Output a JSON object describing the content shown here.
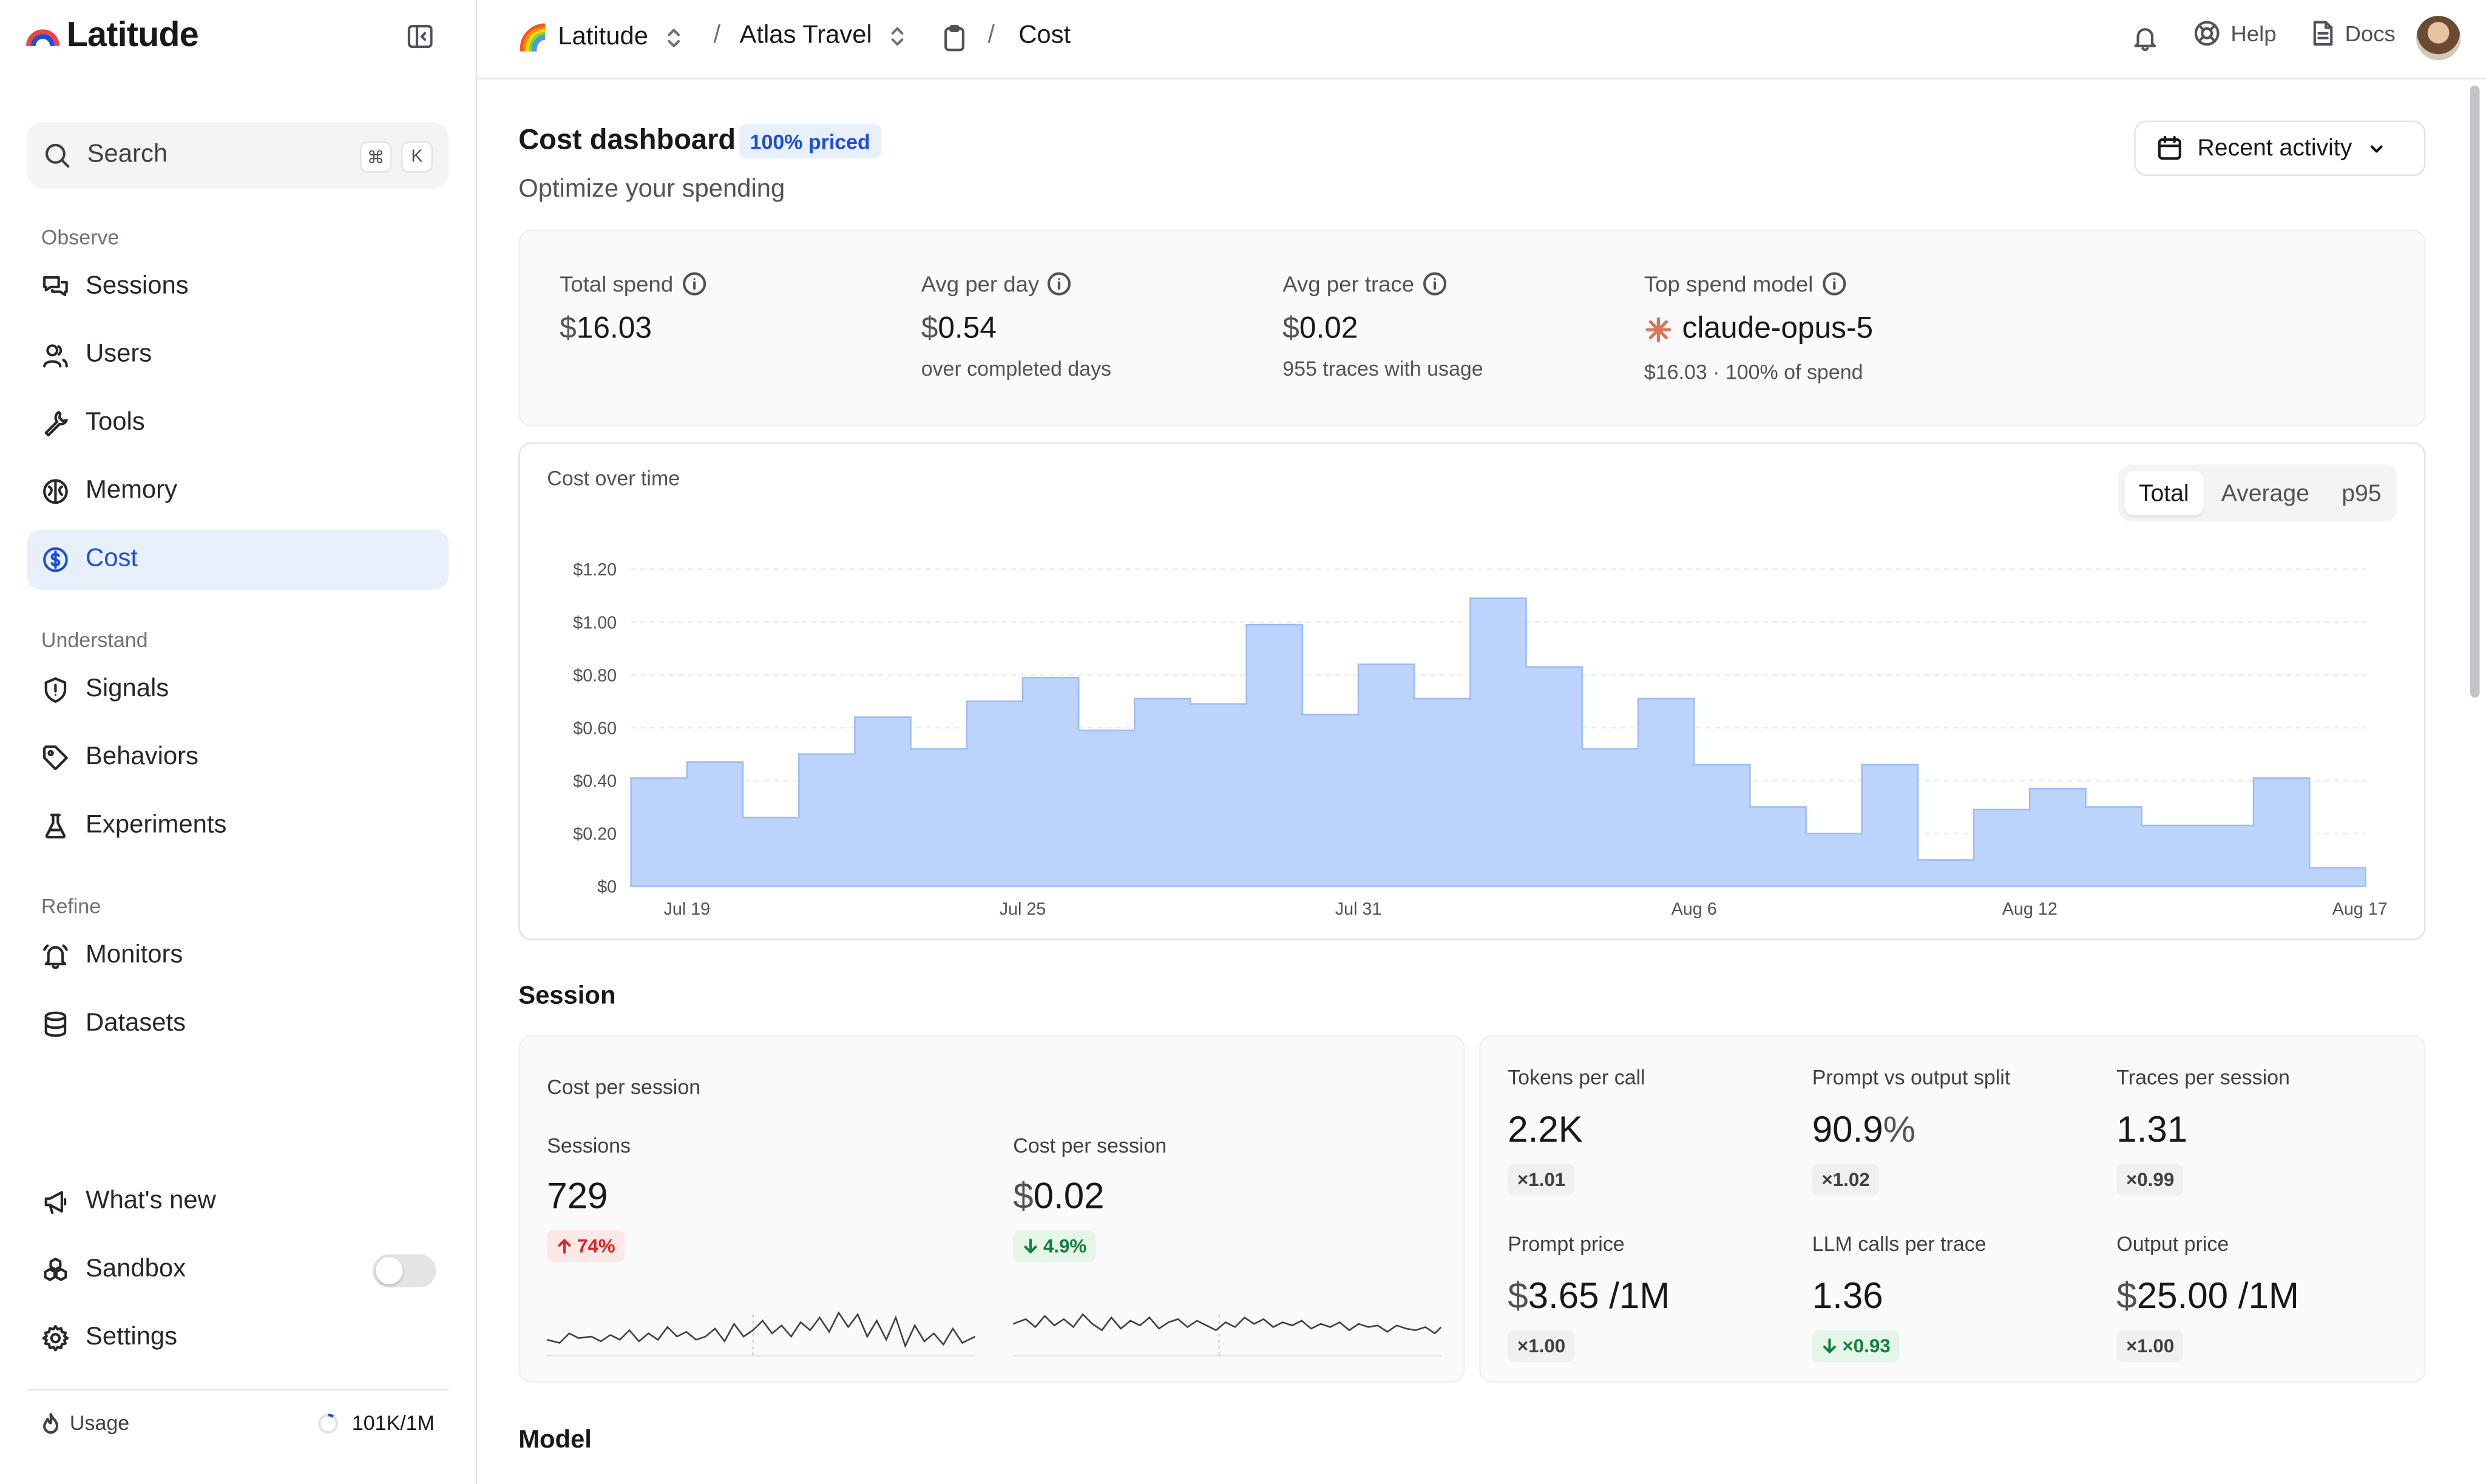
{
  "app": {
    "name": "Latitude"
  },
  "sidebar": {
    "search": {
      "label": "Search",
      "kbd_mod": "⌘",
      "kbd_key": "K"
    },
    "sections": {
      "observe": "Observe",
      "understand": "Understand",
      "refine": "Refine"
    },
    "items": {
      "sessions": "Sessions",
      "users": "Users",
      "tools": "Tools",
      "memory": "Memory",
      "cost": "Cost",
      "signals": "Signals",
      "behaviors": "Behaviors",
      "experiments": "Experiments",
      "monitors": "Monitors",
      "datasets": "Datasets"
    },
    "footer": {
      "whats_new": "What's new",
      "sandbox": "Sandbox",
      "settings": "Settings"
    },
    "usage": {
      "label": "Usage",
      "value": "101K/1M"
    }
  },
  "topbar": {
    "org": "Latitude",
    "project": "Atlas Travel",
    "page": "Cost",
    "sep": "/",
    "help": "Help",
    "docs": "Docs"
  },
  "page": {
    "title": "Cost dashboard",
    "badge": "100% priced",
    "subtitle": "Optimize your spending",
    "range_button": "Recent activity"
  },
  "summary": {
    "total_spend": {
      "label": "Total spend",
      "currency": "$",
      "value": "16.03"
    },
    "avg_per_day": {
      "label": "Avg per day",
      "currency": "$",
      "value": "0.54",
      "sub": "over completed days"
    },
    "avg_per_trace": {
      "label": "Avg per trace",
      "currency": "$",
      "value": "0.02",
      "sub": "955 traces with usage"
    },
    "top_model": {
      "label": "Top spend model",
      "value": "claude-opus-5",
      "sub": "$16.03 · 100% of spend"
    }
  },
  "chart_tabs": [
    "Total",
    "Average",
    "p95"
  ],
  "chart_data": {
    "type": "area",
    "title": "Cost over time",
    "step": true,
    "y_tick_labels": [
      "$0",
      "$0.20",
      "$0.40",
      "$0.60",
      "$0.80",
      "$1.00",
      "$1.20"
    ],
    "ylim": [
      0,
      1.2
    ],
    "x_tick_labels": [
      "Jul 19",
      "Jul 25",
      "Jul 31",
      "Aug 6",
      "Aug 12",
      "Aug 17"
    ],
    "x": [
      "Jul 18",
      "Jul 19",
      "Jul 20",
      "Jul 21",
      "Jul 22",
      "Jul 23",
      "Jul 24",
      "Jul 25",
      "Jul 26",
      "Jul 27",
      "Jul 28",
      "Jul 29",
      "Jul 30",
      "Jul 31",
      "Aug 1",
      "Aug 2",
      "Aug 3",
      "Aug 4",
      "Aug 5",
      "Aug 6",
      "Aug 7",
      "Aug 8",
      "Aug 9",
      "Aug 10",
      "Aug 11",
      "Aug 12",
      "Aug 13",
      "Aug 14",
      "Aug 15",
      "Aug 16",
      "Aug 17"
    ],
    "series": [
      {
        "values": [
          0.41,
          0.47,
          0.26,
          0.5,
          0.64,
          0.52,
          0.7,
          0.79,
          0.59,
          0.71,
          0.69,
          0.99,
          0.65,
          0.84,
          0.71,
          1.09,
          0.83,
          0.52,
          0.71,
          0.46,
          0.3,
          0.2,
          0.46,
          0.1,
          0.29,
          0.37,
          0.3,
          0.23,
          0.23,
          0.41,
          0.07
        ]
      }
    ],
    "color": "#bcd4fb",
    "line_color": "#9dbdf6",
    "grid": true
  },
  "session": {
    "title": "Session",
    "card_title": "Cost per session",
    "sessions": {
      "label": "Sessions",
      "value": "729",
      "delta": "74%",
      "direction": "up"
    },
    "cost_per_session": {
      "label": "Cost per session",
      "currency": "$",
      "value": "0.02",
      "delta": "4.9%",
      "direction": "down"
    },
    "metrics": {
      "tokens_per_call": {
        "label": "Tokens per call",
        "value": "2.2K",
        "ratio": "×1.01"
      },
      "prompt_vs_output": {
        "label": "Prompt vs output split",
        "value": "90.9",
        "unit": "%",
        "ratio": "×1.02"
      },
      "traces_per_session": {
        "label": "Traces per session",
        "value": "1.31",
        "ratio": "×0.99"
      },
      "prompt_price": {
        "label": "Prompt price",
        "currency": "$",
        "value": "3.65 /1M",
        "ratio": "×1.00"
      },
      "llm_calls_per_trace": {
        "label": "LLM calls per trace",
        "value": "1.36",
        "ratio": "×0.93",
        "direction": "down"
      },
      "output_price": {
        "label": "Output price",
        "currency": "$",
        "value": "25.00 /1M",
        "ratio": "×1.00"
      }
    }
  },
  "model_section": {
    "title": "Model"
  },
  "colors": {
    "accent": "#1d4ed8",
    "chart_fill": "#bcd4fb",
    "up_red": "#dc2626",
    "down_green": "#15803d"
  }
}
